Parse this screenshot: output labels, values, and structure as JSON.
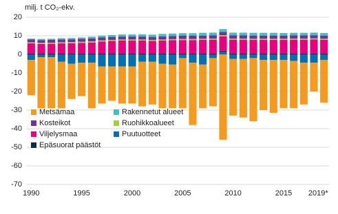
{
  "chart_data": {
    "type": "bar",
    "y_axis_label": "milj. t CO₂-ekv.",
    "categories": [
      "1990",
      null,
      null,
      null,
      null,
      "1995",
      null,
      null,
      null,
      null,
      "2000",
      null,
      null,
      null,
      null,
      "2005",
      null,
      null,
      null,
      null,
      "2010",
      null,
      null,
      null,
      null,
      "2015",
      null,
      null,
      null,
      "2019*"
    ],
    "ylim": [
      -70,
      20
    ],
    "yticks": [
      -70,
      -60,
      -50,
      -40,
      -30,
      -20,
      -10,
      0,
      10,
      20
    ],
    "grid": true,
    "series": [
      {
        "name": "Metsämaa",
        "color": "#f39a21",
        "values": [
          -19,
          -27.5,
          -27.5,
          -25,
          -19,
          -18,
          -24.5,
          -20,
          -18.5,
          -20,
          -20,
          -24,
          -23,
          -24,
          -23.5,
          -27,
          -33.5,
          -23.5,
          -26,
          -46,
          -30.5,
          -31.5,
          -34,
          -27,
          -28.5,
          -26,
          -25.5,
          -22.5,
          -15.5,
          -23
        ]
      },
      {
        "name": "Kosteikot",
        "color": "#7030a0",
        "values": [
          1.5,
          1.5,
          1.5,
          1.5,
          1.5,
          1.5,
          1.6,
          1.6,
          1.6,
          1.6,
          1.6,
          1.6,
          1.6,
          1.7,
          1.7,
          1.7,
          1.7,
          1.7,
          1.7,
          1.8,
          1.7,
          1.7,
          1.7,
          1.7,
          1.7,
          1.7,
          1.7,
          1.7,
          1.7,
          1.7
        ]
      },
      {
        "name": "Viljelysmaa",
        "color": "#e6007e",
        "values": [
          5.5,
          5.2,
          5.3,
          5.5,
          5.6,
          5.8,
          6,
          6.5,
          6.8,
          7,
          7,
          7,
          6.8,
          7,
          7.2,
          7.3,
          7.3,
          7.4,
          7.5,
          7.8,
          7.5,
          7.5,
          7.4,
          7.4,
          7.4,
          7.4,
          7.5,
          7.5,
          7.6,
          7.4
        ]
      },
      {
        "name": "Epäsuorat päästöt",
        "color": "#0b2d4a",
        "values": [
          0.4,
          0.4,
          0.4,
          0.4,
          0.4,
          0.4,
          0.4,
          0.4,
          0.4,
          0.4,
          0.4,
          0.4,
          0.4,
          0.4,
          0.4,
          0.4,
          0.4,
          0.4,
          0.4,
          0.4,
          0.4,
          0.4,
          0.4,
          0.4,
          0.4,
          0.4,
          0.4,
          0.4,
          0.4,
          0.4
        ]
      },
      {
        "name": "Rakennetut alueet",
        "color": "#3ec1c1",
        "values": [
          0.5,
          0.6,
          0.6,
          0.7,
          0.7,
          0.8,
          0.9,
          1,
          1,
          1.1,
          1.1,
          1.2,
          1.2,
          1.3,
          1.3,
          1.4,
          1.4,
          1.5,
          1.5,
          1.5,
          1.5,
          1.5,
          1.5,
          1.5,
          1.5,
          1.4,
          1.4,
          1.4,
          1.4,
          1.4
        ]
      },
      {
        "name": "Ruohikkoalueet",
        "color": "#a6cf3c",
        "values": [
          0.6,
          0.6,
          0.6,
          0.6,
          0.6,
          0.6,
          0.6,
          0.6,
          0.6,
          0.6,
          0.6,
          0.6,
          0.6,
          0.6,
          0.6,
          0.6,
          0.6,
          0.6,
          0.6,
          0.6,
          0.6,
          0.6,
          0.6,
          0.6,
          0.6,
          0.6,
          0.6,
          0.6,
          0.6,
          0.6
        ]
      },
      {
        "name": "Puutuotteet",
        "color": "#0070b0",
        "values": [
          -3,
          -1.5,
          -1.5,
          -4,
          -5,
          -4.5,
          -4.5,
          -6.5,
          -6.5,
          -6.5,
          -6.5,
          -4,
          -4,
          -5,
          -5.5,
          -2,
          -4.5,
          -5.5,
          -2,
          1.5,
          -2.5,
          -2.5,
          -2,
          -3,
          -3,
          -3,
          -3.5,
          -4.5,
          -4.5,
          -3
        ]
      }
    ]
  }
}
